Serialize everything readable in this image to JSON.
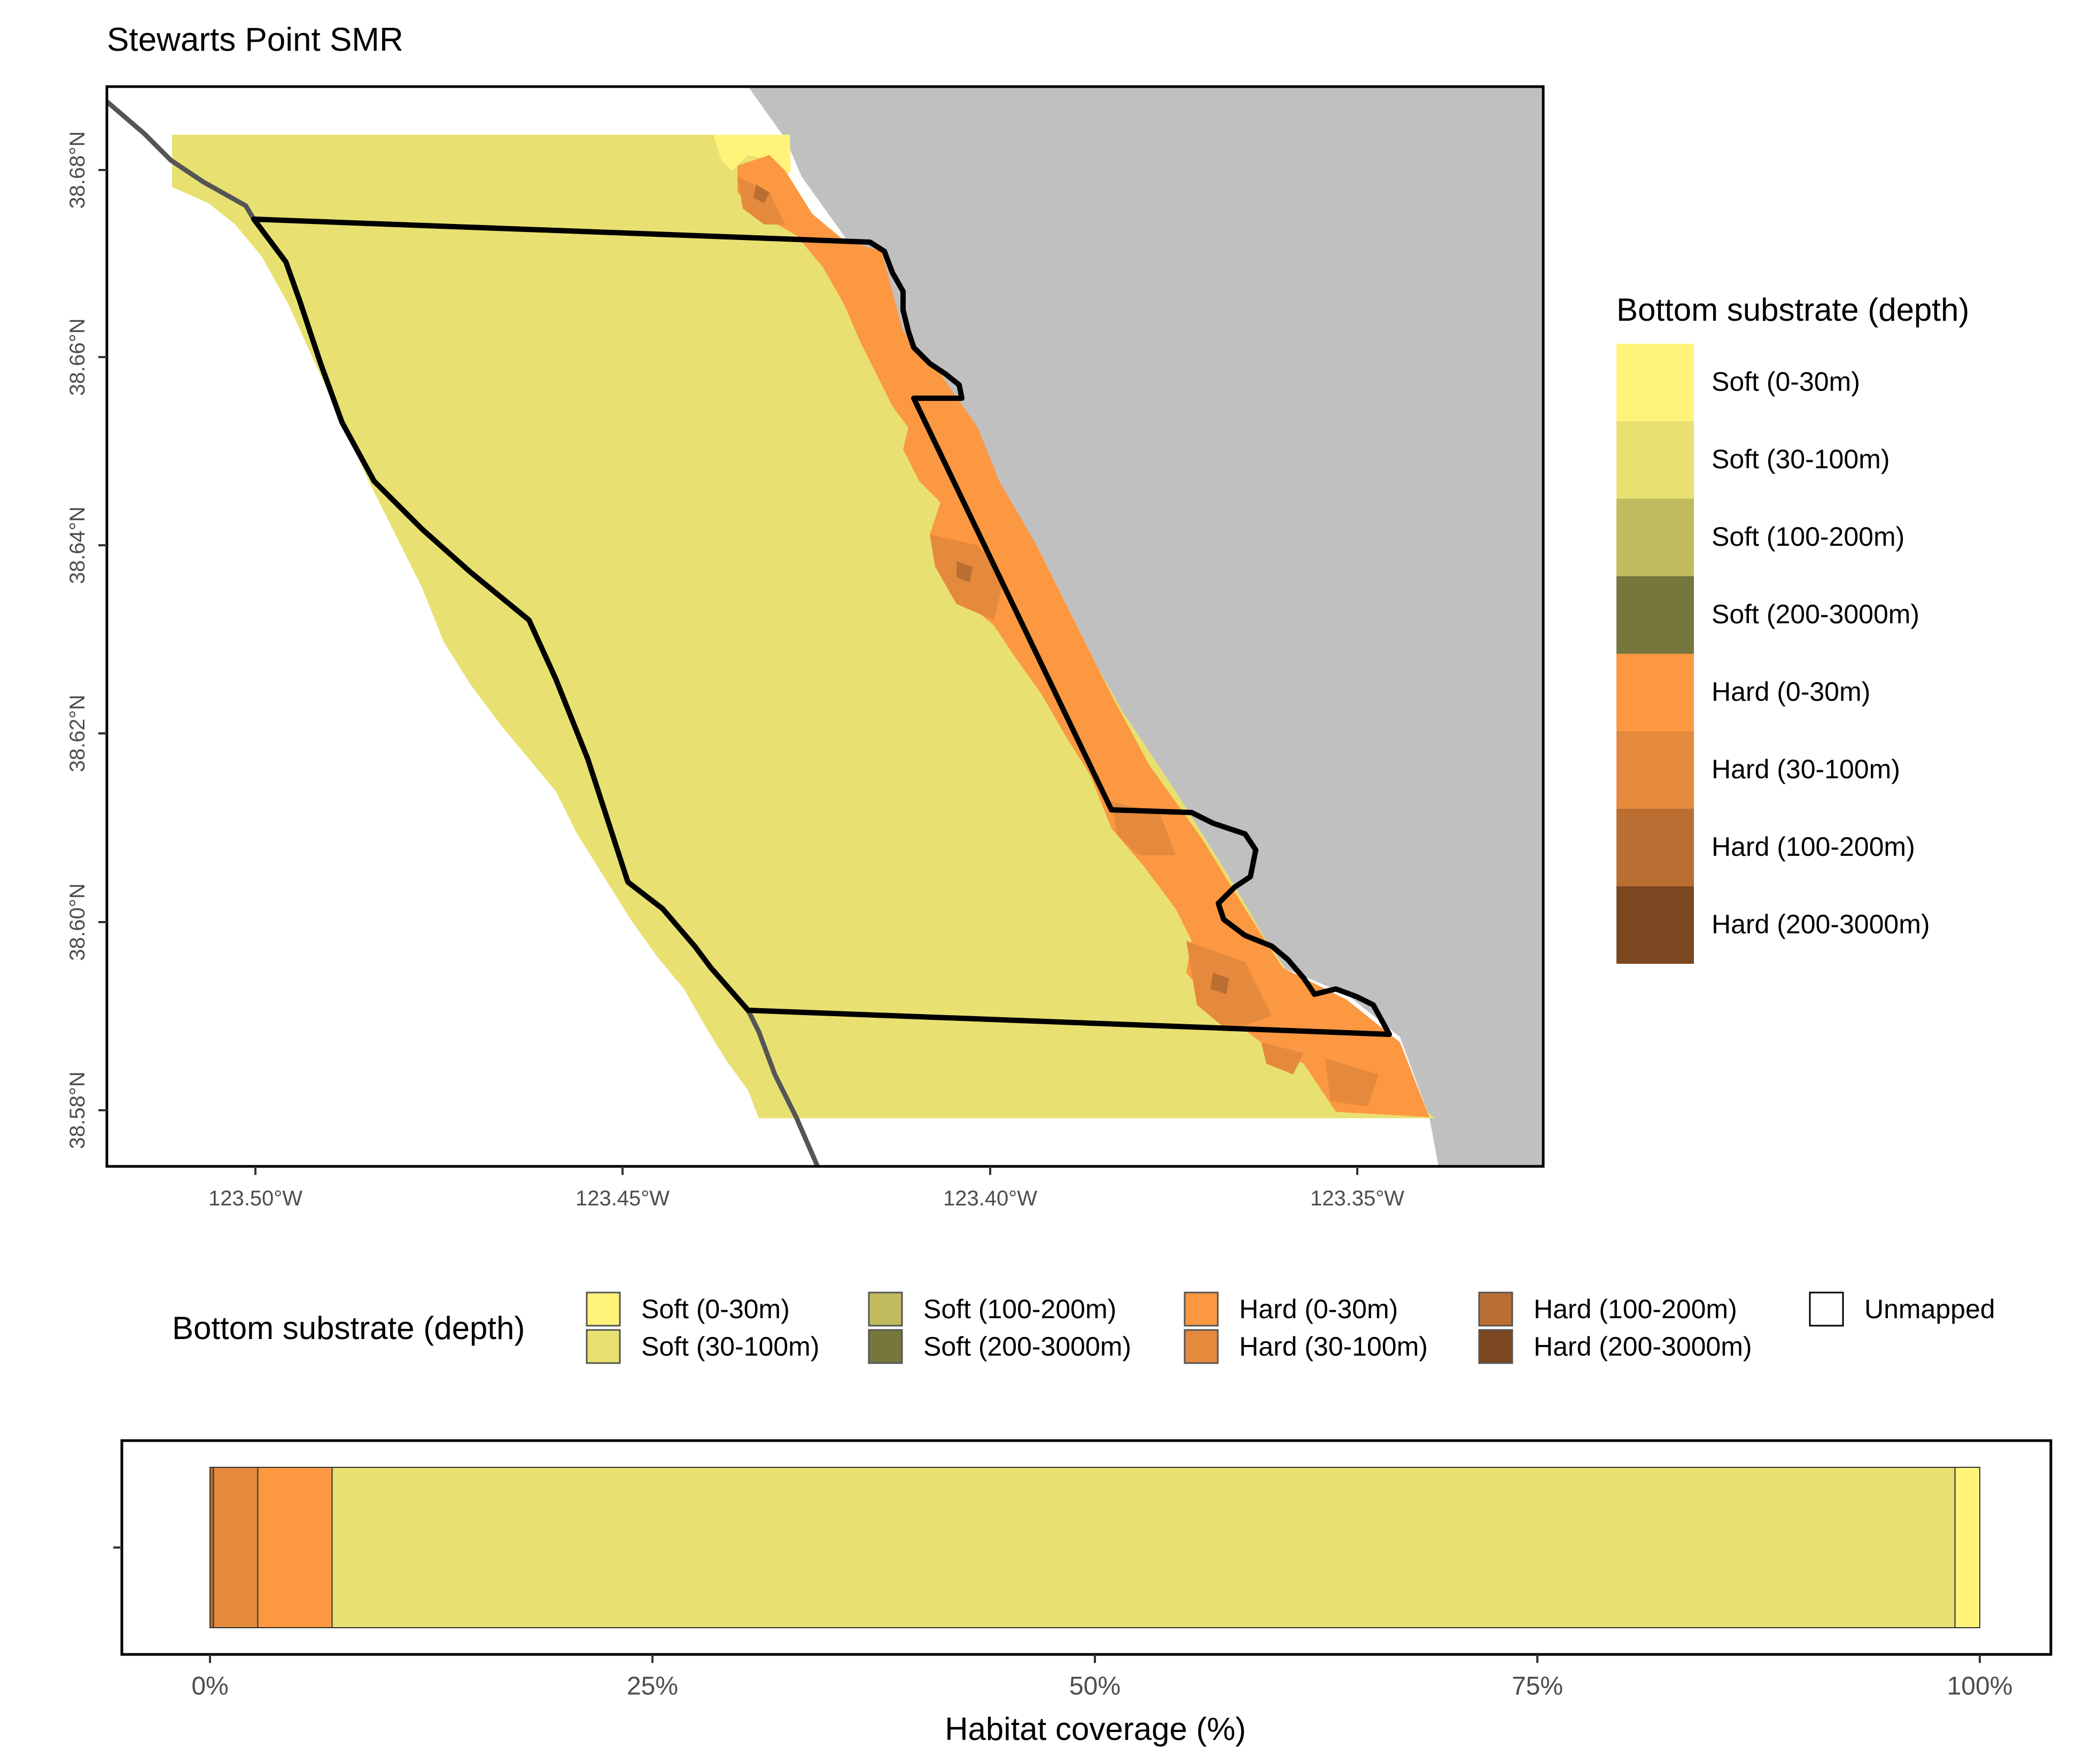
{
  "title": "Stewarts Point SMR",
  "map": {
    "lat_ticks": [
      "38.68°N",
      "38.66°N",
      "38.64°N",
      "38.62°N",
      "38.60°N",
      "38.58°N"
    ],
    "lon_ticks": [
      "123.50°W",
      "123.45°W",
      "123.40°W",
      "123.35°W"
    ]
  },
  "colors": {
    "land": "#c0c0c0",
    "boundary": "#000000",
    "state_waters_line": "#555555",
    "soft_0_30": "#fff37a",
    "soft_30_100": "#e8e171",
    "soft_100_200": "#c0bb5f",
    "soft_200_3000": "#76773d",
    "hard_0_30": "#fc9841",
    "hard_30_100": "#e58a3c",
    "hard_100_200": "#bb6e32",
    "hard_200_3000": "#7b4721",
    "unmapped": "#ffffff"
  },
  "right_legend": {
    "title": "Bottom substrate (depth)",
    "items": [
      {
        "label": "Soft (0-30m)",
        "color": "#fff37a"
      },
      {
        "label": "Soft (30-100m)",
        "color": "#e8e171"
      },
      {
        "label": "Soft (100-200m)",
        "color": "#c0bb5f"
      },
      {
        "label": "Soft (200-3000m)",
        "color": "#76773d"
      },
      {
        "label": "Hard (0-30m)",
        "color": "#fc9841"
      },
      {
        "label": "Hard (30-100m)",
        "color": "#e58a3c"
      },
      {
        "label": "Hard (100-200m)",
        "color": "#bb6e32"
      },
      {
        "label": "Hard (200-3000m)",
        "color": "#7b4721"
      }
    ]
  },
  "bottom_legend": {
    "title": "Bottom substrate (depth)",
    "items": [
      {
        "label": "Soft (0-30m)",
        "color": "#fff37a"
      },
      {
        "label": "Soft (30-100m)",
        "color": "#e8e171"
      },
      {
        "label": "Soft (100-200m)",
        "color": "#c0bb5f"
      },
      {
        "label": "Soft (200-3000m)",
        "color": "#76773d"
      },
      {
        "label": "Hard (0-30m)",
        "color": "#fc9841"
      },
      {
        "label": "Hard (30-100m)",
        "color": "#e58a3c"
      },
      {
        "label": "Hard (100-200m)",
        "color": "#bb6e32"
      },
      {
        "label": "Hard (200-3000m)",
        "color": "#7b4721"
      },
      {
        "label": "Unmapped",
        "color": "#ffffff"
      }
    ]
  },
  "chart_data": {
    "type": "bar",
    "orientation": "horizontal-stacked",
    "xlabel": "Habitat coverage (%)",
    "xlim": [
      0,
      100
    ],
    "ticks": [
      0,
      25,
      50,
      75,
      100
    ],
    "tick_labels": [
      "0%",
      "25%",
      "50%",
      "75%",
      "100%"
    ],
    "segments": [
      {
        "name": "Hard (100-200m)",
        "value": 0.2,
        "color": "#bb6e32"
      },
      {
        "name": "Hard (30-100m)",
        "value": 2.5,
        "color": "#e58a3c"
      },
      {
        "name": "Hard (0-30m)",
        "value": 4.2,
        "color": "#fc9841"
      },
      {
        "name": "Soft (30-100m)",
        "value": 91.7,
        "color": "#e8e171"
      },
      {
        "name": "Soft (0-30m)",
        "value": 1.4,
        "color": "#fff37a"
      }
    ]
  }
}
